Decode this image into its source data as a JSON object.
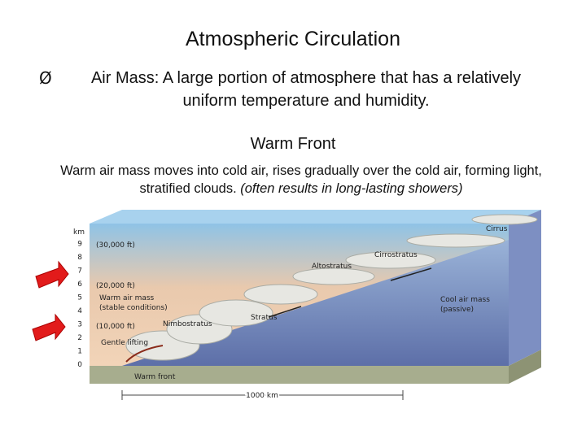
{
  "slide": {
    "title": "Atmospheric Circulation",
    "bullet": {
      "marker": "Ø",
      "text": "Air Mass: A large portion of atmosphere that has a relatively uniform temperature and humidity."
    },
    "subtitle": "Warm Front",
    "description": {
      "text": "Warm air mass moves into cold air, rises gradually over the cold air, forming light, stratified clouds.",
      "note": "(often results in long-lasting showers)"
    }
  },
  "diagram": {
    "unit": "km",
    "altitude_ticks": [
      "0",
      "1",
      "2",
      "3",
      "4",
      "5",
      "6",
      "7",
      "8",
      "9"
    ],
    "feet_labels": [
      "(30,000 ft)",
      "(20,000 ft)",
      "(10,000 ft)"
    ],
    "labels": {
      "cirrus": "Cirrus",
      "cirrostratus": "Cirrostratus",
      "altostratus": "Altostratus",
      "warm_air": "Warm air mass",
      "warm_air_note": "(stable conditions)",
      "stratus": "Stratus",
      "nimbostratus": "Nimbostratus",
      "cool_air": "Cool air mass",
      "cool_air_note": "(passive)",
      "gentle_lifting": "Gentle lifting",
      "warm_front": "Warm front",
      "distance": "1000 km"
    }
  }
}
